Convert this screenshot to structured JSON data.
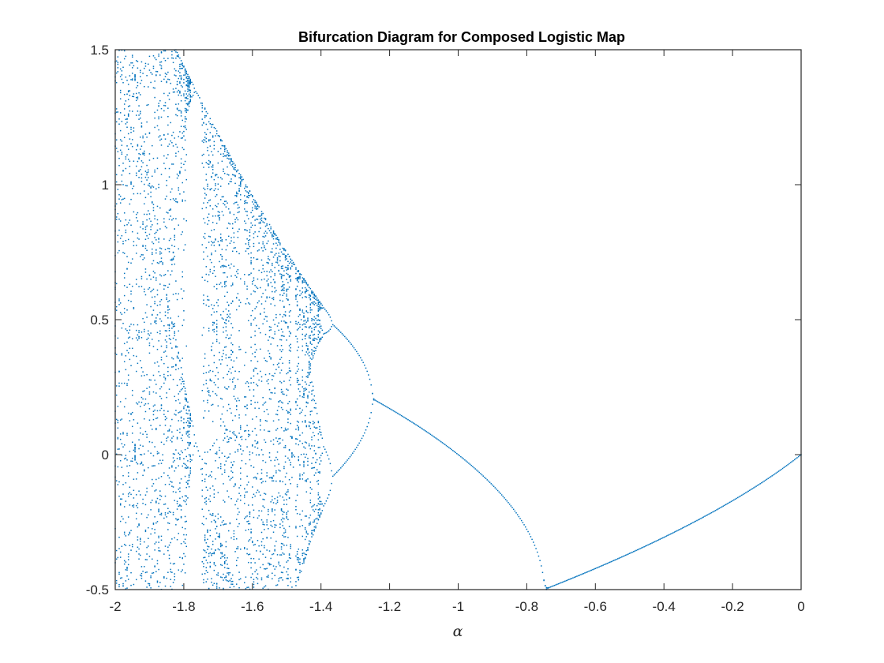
{
  "chart_data": {
    "type": "scatter",
    "title": "Bifurcation Diagram for Composed Logistic Map",
    "xlabel": "α",
    "ylabel": "",
    "xlim": [
      -2,
      0
    ],
    "ylim": [
      -0.5,
      1.5
    ],
    "x_ticks": [
      -2,
      -1.8,
      -1.6,
      -1.4,
      -1.2,
      -1,
      -0.8,
      -0.6,
      -0.4,
      -0.2,
      0
    ],
    "x_tick_labels": [
      "-2",
      "-1.8",
      "-1.6",
      "-1.4",
      "-1.2",
      "-1",
      "-0.8",
      "-0.6",
      "-0.4",
      "-0.2",
      "0"
    ],
    "y_ticks": [
      -0.5,
      0,
      0.5,
      1,
      1.5
    ],
    "y_tick_labels": [
      "-0.5",
      "0",
      "0.5",
      "1",
      "1.5"
    ],
    "grid": false,
    "marker_color": "#0072BD",
    "series": [
      {
        "description_points": [
          {
            "x": -1.0,
            "y": 0.0
          },
          {
            "x": -1.2,
            "y": 0.0
          },
          {
            "x": -1.4,
            "y": 0.0
          },
          {
            "x": -1.45,
            "y": 0.65
          },
          {
            "x": -1.55,
            "y": 0.8
          },
          {
            "x": -1.55,
            "y": 0.43
          },
          {
            "x": -1.68,
            "y": -0.42
          },
          {
            "x": -1.8,
            "y": 1.2
          },
          {
            "x": -2.0,
            "y": 1.5
          },
          {
            "x": -2.0,
            "y": -0.5
          }
        ]
      }
    ]
  }
}
